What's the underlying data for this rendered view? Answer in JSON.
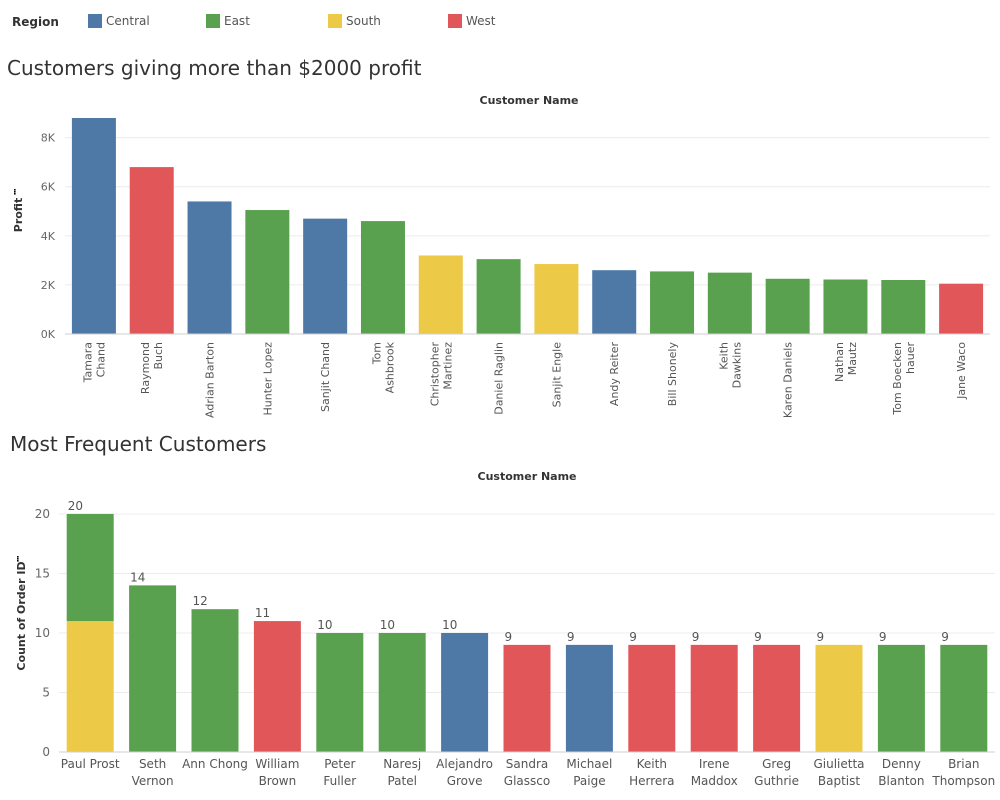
{
  "legend": {
    "title": "Region",
    "items": [
      {
        "label": "Central",
        "color": "#4e79a7"
      },
      {
        "label": "East",
        "color": "#59a14f"
      },
      {
        "label": "South",
        "color": "#edc948"
      },
      {
        "label": "West",
        "color": "#e15759"
      }
    ]
  },
  "chart_data": [
    {
      "type": "bar",
      "title": "Customers giving more than $2000 profit",
      "xlabel": "Customer Name",
      "ylabel": "Profit",
      "ylim": [
        0,
        8800
      ],
      "yticks": [
        0,
        2000,
        4000,
        6000,
        8000
      ],
      "ytick_labels": [
        "0K",
        "2K",
        "4K",
        "6K",
        "8K"
      ],
      "grid": true,
      "categories": [
        "Tamara Chand",
        "Raymond Buch",
        "Adrian Barton",
        "Hunter Lopez",
        "Sanjit Chand",
        "Tom Ashbrook",
        "Christopher Martinez",
        "Daniel Raglin",
        "Sanjit Engle",
        "Andy Reiter",
        "Bill Shonely",
        "Keith Dawkins",
        "Karen Daniels",
        "Nathan Mautz",
        "Tom Boeckenhauer",
        "Jane Waco"
      ],
      "category_labels": [
        [
          "Tamara",
          "Chand"
        ],
        [
          "Raymond",
          "Buch"
        ],
        [
          "Adrian Barton"
        ],
        [
          "Hunter Lopez"
        ],
        [
          "Sanjit Chand"
        ],
        [
          "Tom",
          "Ashbrook"
        ],
        [
          "Christopher",
          "Martinez"
        ],
        [
          "Daniel Raglin"
        ],
        [
          "Sanjit Engle"
        ],
        [
          "Andy Reiter"
        ],
        [
          "Bill Shonely"
        ],
        [
          "Keith",
          "Dawkins"
        ],
        [
          "Karen Daniels"
        ],
        [
          "Nathan",
          "Mautz"
        ],
        [
          "Tom Boecken",
          "hauer"
        ],
        [
          "Jane Waco"
        ]
      ],
      "values": [
        8800,
        6800,
        5400,
        5050,
        4700,
        4600,
        3200,
        3050,
        2850,
        2600,
        2550,
        2500,
        2250,
        2220,
        2200,
        2050
      ],
      "regions": [
        "Central",
        "West",
        "Central",
        "East",
        "Central",
        "East",
        "South",
        "East",
        "South",
        "Central",
        "East",
        "East",
        "East",
        "East",
        "East",
        "West"
      ]
    },
    {
      "type": "bar",
      "stacked": true,
      "title": "Most Frequent Customers",
      "xlabel": "Customer Name",
      "ylabel": "Count of Order ID",
      "ylim": [
        0,
        20.5
      ],
      "yticks": [
        0,
        5,
        10,
        15,
        20
      ],
      "ytick_labels": [
        "0",
        "5",
        "10",
        "15",
        "20"
      ],
      "grid": true,
      "categories": [
        "Paul Prost",
        "Seth Vernon",
        "Ann Chong",
        "William Brown",
        "Peter Fuller",
        "Naresj Patel",
        "Alejandro Grove",
        "Sandra Glassco",
        "Michael Paige",
        "Keith Herrera",
        "Irene Maddox",
        "Greg Guthrie",
        "Giulietta Baptist",
        "Denny Blanton",
        "Brian Thompson"
      ],
      "category_labels": [
        [
          "Paul Prost"
        ],
        [
          "Seth",
          "Vernon"
        ],
        [
          "Ann Chong"
        ],
        [
          "William",
          "Brown"
        ],
        [
          "Peter",
          "Fuller"
        ],
        [
          "Naresj",
          "Patel"
        ],
        [
          "Alejandro",
          "Grove"
        ],
        [
          "Sandra",
          "Glassco"
        ],
        [
          "Michael",
          "Paige"
        ],
        [
          "Keith",
          "Herrera"
        ],
        [
          "Irene",
          "Maddox"
        ],
        [
          "Greg",
          "Guthrie"
        ],
        [
          "Giulietta",
          "Baptist"
        ],
        [
          "Denny",
          "Blanton"
        ],
        [
          "Brian",
          "Thompson"
        ]
      ],
      "totals": [
        20,
        14,
        12,
        11,
        10,
        10,
        10,
        9,
        9,
        9,
        9,
        9,
        9,
        9,
        9
      ],
      "stacks": [
        [
          {
            "region": "South",
            "value": 11
          },
          {
            "region": "East",
            "value": 9
          }
        ],
        [
          {
            "region": "East",
            "value": 14
          }
        ],
        [
          {
            "region": "East",
            "value": 12
          }
        ],
        [
          {
            "region": "West",
            "value": 11
          }
        ],
        [
          {
            "region": "East",
            "value": 10
          }
        ],
        [
          {
            "region": "East",
            "value": 10
          }
        ],
        [
          {
            "region": "Central",
            "value": 10
          }
        ],
        [
          {
            "region": "West",
            "value": 9
          }
        ],
        [
          {
            "region": "Central",
            "value": 9
          }
        ],
        [
          {
            "region": "West",
            "value": 9
          }
        ],
        [
          {
            "region": "West",
            "value": 9
          }
        ],
        [
          {
            "region": "West",
            "value": 9
          }
        ],
        [
          {
            "region": "South",
            "value": 9
          }
        ],
        [
          {
            "region": "East",
            "value": 9
          }
        ],
        [
          {
            "region": "East",
            "value": 9
          }
        ]
      ]
    }
  ]
}
